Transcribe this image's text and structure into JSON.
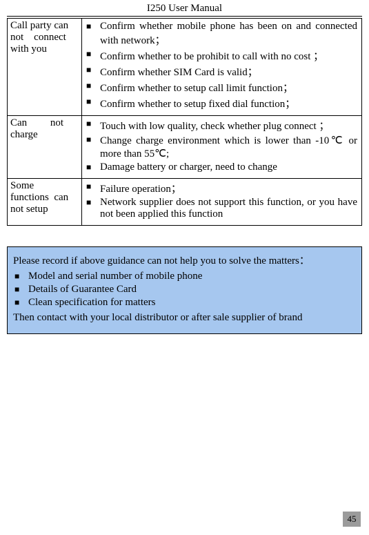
{
  "header": {
    "title": "I250 User Manual"
  },
  "table": {
    "rows": [
      {
        "issue_html": "Call party can<br><span class='jline'>not&nbsp;&nbsp;&nbsp;&nbsp;connect</span><br>with you",
        "items": [
          "Confirm whether mobile phone has been on and connected with network；",
          "Confirm whether to be prohibit to call with no cost ；",
          "Confirm whether SIM Card is valid；",
          "Confirm whether to setup call limit function；",
          "Confirm whether to setup fixed dial function；"
        ]
      },
      {
        "issue_html": "<span class='jline'>Can&nbsp;&nbsp;&nbsp;&nbsp;&nbsp;&nbsp;&nbsp;&nbsp;&nbsp;not</span><br>charge",
        "items": [
          "Touch with low quality, check whether plug connect ；",
          "Change charge environment which is lower than -10℃ or more than 55℃;",
          "Damage battery or charger, need to change"
        ]
      },
      {
        "issue_html": "Some<br>functions&nbsp;&nbsp;can<br>not setup",
        "items": [
          "Failure operation；",
          "Network supplier does not support this function, or you have not been applied this function"
        ]
      }
    ]
  },
  "notice": {
    "intro": "Please record if above guidance can not help you to solve the matters：",
    "items": [
      "Model and serial number of mobile phone",
      "Details of Guarantee Card",
      "Clean specification for matters"
    ],
    "outro": "Then contact with your local distributor or after sale supplier of brand"
  },
  "page_number": "45",
  "style": {
    "notice_bg": "#a6c7ef",
    "page_num_bg": "#9b9b9b"
  }
}
